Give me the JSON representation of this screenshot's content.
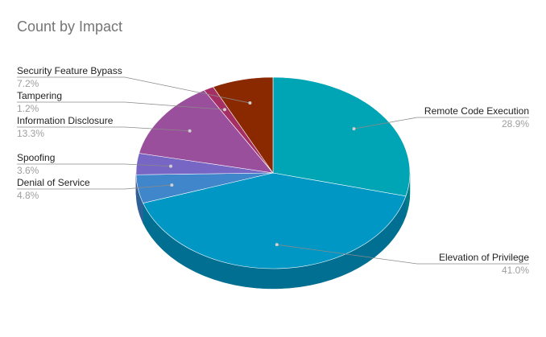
{
  "title": "Count by Impact",
  "chart_data": {
    "type": "pie",
    "title": "Count by Impact",
    "three_d": true,
    "start_angle_deg": 0,
    "direction": "clockwise",
    "slices": [
      {
        "label": "Remote Code Execution",
        "value": 28.9,
        "percent_label": "28.9%",
        "color": "#00a5b5",
        "side_color": "#007c88"
      },
      {
        "label": "Elevation of Privilege",
        "value": 41.0,
        "percent_label": "41.0%",
        "color": "#0097c4",
        "side_color": "#006f91"
      },
      {
        "label": "Denial of Service",
        "value": 4.8,
        "percent_label": "4.8%",
        "color": "#3f86cb",
        "side_color": "#2d6298"
      },
      {
        "label": "Spoofing",
        "value": 3.6,
        "percent_label": "3.6%",
        "color": "#7766c4",
        "side_color": "#574b93"
      },
      {
        "label": "Information Disclosure",
        "value": 13.3,
        "percent_label": "13.3%",
        "color": "#9a4f9c",
        "side_color": "#713a73"
      },
      {
        "label": "Tampering",
        "value": 1.2,
        "percent_label": "1.2%",
        "color": "#a52f64",
        "side_color": "#7a2249"
      },
      {
        "label": "Security Feature Bypass",
        "value": 7.2,
        "percent_label": "7.2%",
        "color": "#8a2800",
        "side_color": "#621c00"
      }
    ]
  }
}
